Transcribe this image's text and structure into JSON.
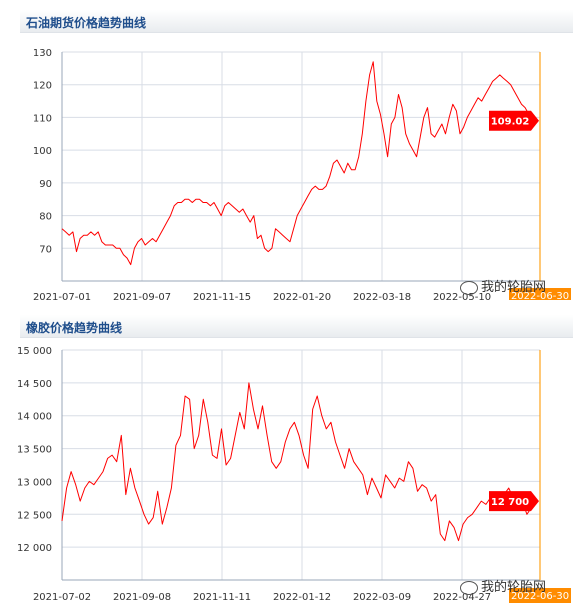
{
  "chart_data": [
    {
      "type": "line",
      "title": "石油期货价格趋势曲线",
      "x_ticks": [
        "2021-07-01",
        "2021-09-07",
        "2021-11-15",
        "2022-01-20",
        "2022-03-18",
        "2022-05-10"
      ],
      "y_ticks": [
        "70",
        "80",
        "90",
        "100",
        "110",
        "120",
        "130"
      ],
      "ylim": [
        60,
        130
      ],
      "grid": true,
      "series": [
        {
          "color": "#ff0000",
          "values": [
            76,
            75,
            74,
            75,
            69,
            73,
            74,
            74,
            75,
            74,
            75,
            72,
            71,
            71,
            71,
            70,
            70,
            68,
            67,
            65,
            70,
            72,
            73,
            71,
            72,
            73,
            72,
            74,
            76,
            78,
            80,
            83,
            84,
            84,
            85,
            85,
            84,
            85,
            85,
            84,
            84,
            83,
            84,
            82,
            80,
            83,
            84,
            83,
            82,
            81,
            82,
            80,
            78,
            80,
            73,
            74,
            70,
            69,
            70,
            76,
            75,
            74,
            73,
            72,
            76,
            80,
            82,
            84,
            86,
            88,
            89,
            88,
            88,
            89,
            92,
            96,
            97,
            95,
            93,
            96,
            94,
            94,
            98,
            105,
            115,
            123,
            127,
            115,
            111,
            105,
            98,
            108,
            110,
            117,
            113,
            105,
            102,
            100,
            98,
            104,
            110,
            113,
            105,
            104,
            106,
            108,
            105,
            110,
            114,
            112,
            105,
            107,
            110,
            112,
            114,
            116,
            115,
            117,
            119,
            121,
            122,
            123,
            122,
            121,
            120,
            118,
            116,
            114,
            113,
            111,
            109,
            109
          ]
        }
      ],
      "last_value_label": "109.02",
      "last_date_label": "2022-06-30",
      "watermark": "我的轮胎网"
    },
    {
      "type": "line",
      "title": "橡胶价格趋势曲线",
      "x_ticks": [
        "2021-07-02",
        "2021-09-08",
        "2021-11-11",
        "2022-01-12",
        "2022-03-09",
        "2022-04-27"
      ],
      "y_ticks": [
        "12 000",
        "12 500",
        "13 000",
        "13 500",
        "14 000",
        "14 500",
        "15 000"
      ],
      "ylim": [
        11500,
        15000
      ],
      "grid": true,
      "series": [
        {
          "color": "#ff0000",
          "values": [
            12400,
            12900,
            13150,
            12950,
            12700,
            12900,
            13000,
            12950,
            13050,
            13150,
            13350,
            13400,
            13300,
            13700,
            12800,
            13200,
            12900,
            12700,
            12500,
            12350,
            12450,
            12850,
            12350,
            12600,
            12900,
            13550,
            13700,
            14300,
            14250,
            13500,
            13700,
            14250,
            13900,
            13400,
            13350,
            13800,
            13250,
            13350,
            13700,
            14050,
            13800,
            14500,
            14100,
            13800,
            14150,
            13700,
            13300,
            13200,
            13300,
            13600,
            13800,
            13900,
            13700,
            13400,
            13200,
            14100,
            14300,
            14000,
            13800,
            13900,
            13600,
            13400,
            13200,
            13500,
            13300,
            13200,
            13100,
            12800,
            13050,
            12900,
            12750,
            13100,
            13000,
            12900,
            13050,
            13000,
            13300,
            13200,
            12850,
            12950,
            12900,
            12700,
            12800,
            12200,
            12100,
            12400,
            12300,
            12100,
            12350,
            12450,
            12500,
            12600,
            12700,
            12650,
            12750,
            12600,
            12700,
            12800,
            12900,
            12750,
            12650,
            12700,
            12500,
            12600,
            12700
          ]
        }
      ],
      "last_value_label": "12 700",
      "last_date_label": "2022-06-30",
      "watermark": "我的轮胎网"
    }
  ]
}
